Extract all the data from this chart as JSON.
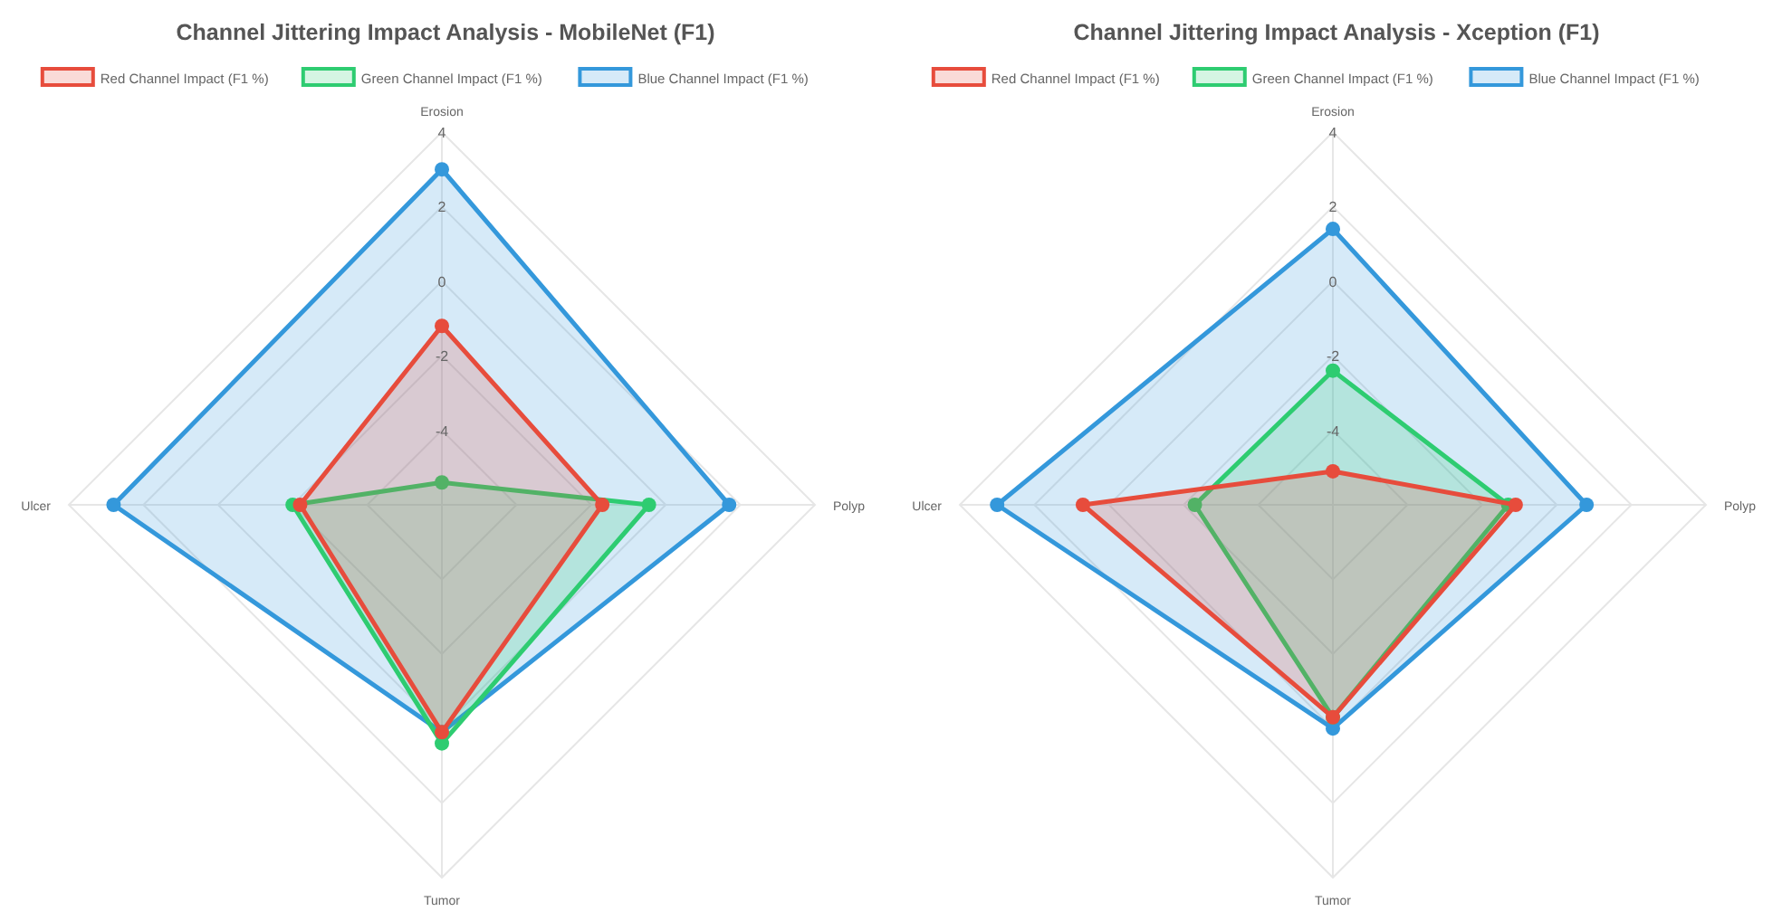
{
  "chart_data": [
    {
      "type": "radar",
      "title": "Channel Jittering Impact Analysis - MobileNet (F1)",
      "categories": [
        "Erosion",
        "Polyp",
        "Tumor",
        "Ulcer"
      ],
      "ylim": [
        -6,
        4
      ],
      "yticks": [
        -4,
        -2,
        0,
        2,
        4
      ],
      "grid": true,
      "legend": "top",
      "marker": "circle",
      "series": [
        {
          "name": "Red Channel Impact (F1 %)",
          "color": "#e74c3c",
          "values": [
            -1.2,
            -1.7,
            0.1,
            -2.2
          ]
        },
        {
          "name": "Green Channel Impact (F1 %)",
          "color": "#2ecc71",
          "values": [
            -5.4,
            -0.45,
            0.4,
            -2.0
          ]
        },
        {
          "name": "Blue Channel Impact (F1 %)",
          "color": "#3498db",
          "values": [
            3.0,
            1.7,
            0.1,
            2.8
          ]
        }
      ]
    },
    {
      "type": "radar",
      "title": "Channel Jittering Impact Analysis - Xception (F1)",
      "categories": [
        "Erosion",
        "Polyp",
        "Tumor",
        "Ulcer"
      ],
      "ylim": [
        -6,
        4
      ],
      "yticks": [
        -4,
        -2,
        0,
        2,
        4
      ],
      "grid": true,
      "legend": "top",
      "marker": "circle",
      "series": [
        {
          "name": "Red Channel Impact (F1 %)",
          "color": "#e74c3c",
          "values": [
            -5.1,
            -1.1,
            -0.3,
            0.7
          ]
        },
        {
          "name": "Green Channel Impact (F1 %)",
          "color": "#2ecc71",
          "values": [
            -2.4,
            -1.3,
            -0.3,
            -2.3
          ]
        },
        {
          "name": "Blue Channel Impact (F1 %)",
          "color": "#3498db",
          "values": [
            1.4,
            0.8,
            0.0,
            3.0
          ]
        }
      ]
    }
  ]
}
